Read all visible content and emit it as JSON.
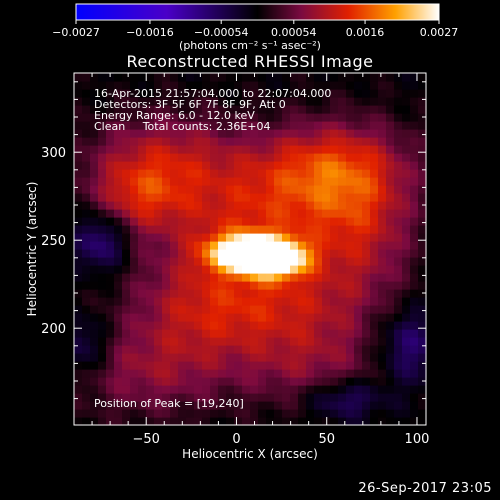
{
  "chart_data": {
    "type": "heatmap",
    "title": "Reconstructed RHESSI Image",
    "xlabel": "Heliocentric X (arcsec)",
    "ylabel": "Heliocentric Y (arcsec)",
    "xlim": [
      -90,
      105
    ],
    "ylim": [
      145,
      345
    ],
    "x_ticks": [
      "−50",
      "0",
      "50",
      "100"
    ],
    "x_tick_values": [
      -50,
      0,
      50,
      100
    ],
    "y_ticks": [
      "300",
      "250",
      "200"
    ],
    "y_tick_values": [
      300,
      250,
      200
    ],
    "colorbar": {
      "range": [
        -0.0027,
        0.0027
      ],
      "tick_labels": [
        "−0.0027",
        "−0.0016",
        "−0.00054",
        "0.00054",
        "0.0016",
        "0.0027"
      ],
      "tick_values": [
        -0.0027,
        -0.0016,
        -0.00054,
        0.00054,
        0.0016,
        0.0027
      ],
      "unit_label": "(photons cm⁻² s⁻¹ asec⁻²)"
    },
    "annotations": [
      "16-Apr-2015 21:57:04.000 to 22:07:04.000",
      "Detectors: 3F 5F 6F 7F 8F 9F, Att 0",
      "Energy Range: 6.0 - 12.0 keV",
      "Clean     Total counts: 2.36E+04"
    ],
    "peak_label": "Position of Peak = [19,240]",
    "peak": {
      "x": 19,
      "y": 240,
      "value": 0.0027
    },
    "sources": [
      {
        "x": 5,
        "y": 243,
        "sx": 14,
        "sy": 7,
        "amp": 1.0
      },
      {
        "x": 22,
        "y": 240,
        "sx": 12,
        "sy": 7,
        "amp": 0.95
      },
      {
        "x": 10,
        "y": 262,
        "sx": 40,
        "sy": 22,
        "amp": 0.4
      },
      {
        "x": 50,
        "y": 292,
        "sx": 30,
        "sy": 18,
        "amp": 0.45
      },
      {
        "x": -40,
        "y": 297,
        "sx": 30,
        "sy": 18,
        "amp": 0.35
      },
      {
        "x": -55,
        "y": 275,
        "sx": 18,
        "sy": 14,
        "amp": 0.3
      },
      {
        "x": -20,
        "y": 212,
        "sx": 28,
        "sy": 22,
        "amp": 0.35
      },
      {
        "x": 30,
        "y": 215,
        "sx": 30,
        "sy": 18,
        "amp": 0.3
      },
      {
        "x": 70,
        "y": 258,
        "sx": 20,
        "sy": 30,
        "amp": 0.3
      },
      {
        "x": -50,
        "y": 175,
        "sx": 30,
        "sy": 18,
        "amp": 0.25
      },
      {
        "x": 40,
        "y": 180,
        "sx": 30,
        "sy": 18,
        "amp": 0.25
      },
      {
        "x": -75,
        "y": 250,
        "sx": 10,
        "sy": 12,
        "amp": -0.35
      },
      {
        "x": 95,
        "y": 190,
        "sx": 12,
        "sy": 15,
        "amp": -0.3
      },
      {
        "x": -85,
        "y": 190,
        "sx": 10,
        "sy": 12,
        "amp": -0.25
      },
      {
        "x": 60,
        "y": 160,
        "sx": 15,
        "sy": 8,
        "amp": -0.3
      }
    ]
  },
  "timestamp": "26-Sep-2017 23:05"
}
